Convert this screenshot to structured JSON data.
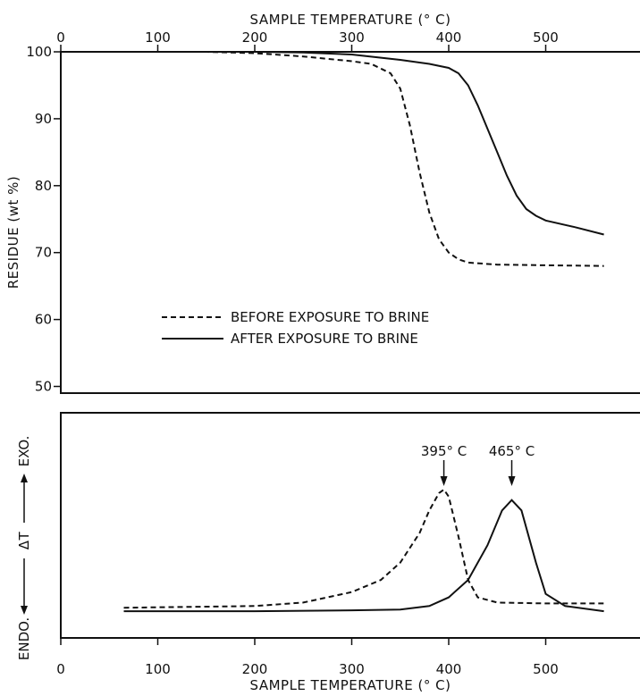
{
  "chart_data": [
    {
      "type": "line",
      "panel": "tga",
      "xlabel": "SAMPLE TEMPERATURE (° C)",
      "ylabel": "RESIDUE (wt %)",
      "xlim": [
        0,
        560
      ],
      "ylim": [
        49,
        100
      ],
      "x_ticks": [
        0,
        100,
        200,
        300,
        400,
        500
      ],
      "y_ticks": [
        50,
        60,
        70,
        80,
        90,
        100
      ],
      "legend": {
        "position": "middle-left",
        "entries": [
          {
            "label": "BEFORE EXPOSURE TO BRINE",
            "style": "dashed"
          },
          {
            "label": "AFTER EXPOSURE TO BRINE",
            "style": "solid"
          }
        ]
      },
      "series": [
        {
          "name": "BEFORE EXPOSURE TO BRINE",
          "style": "dashed",
          "x": [
            0,
            100,
            150,
            200,
            250,
            300,
            320,
            340,
            350,
            360,
            370,
            380,
            390,
            400,
            410,
            420,
            450,
            500,
            560
          ],
          "y": [
            100,
            100,
            100,
            99.8,
            99.3,
            98.6,
            98.2,
            96.8,
            94.5,
            89,
            82,
            76,
            72,
            70,
            69,
            68.5,
            68.2,
            68.1,
            68
          ]
        },
        {
          "name": "AFTER EXPOSURE TO BRINE",
          "style": "solid",
          "x": [
            0,
            100,
            200,
            250,
            300,
            350,
            380,
            400,
            410,
            420,
            430,
            440,
            450,
            460,
            470,
            480,
            490,
            500,
            530,
            560
          ],
          "y": [
            100,
            100,
            100,
            99.9,
            99.6,
            98.8,
            98.2,
            97.6,
            96.8,
            95,
            92,
            88.5,
            85,
            81.5,
            78.5,
            76.5,
            75.5,
            74.8,
            73.8,
            72.7
          ]
        }
      ]
    },
    {
      "type": "line",
      "panel": "dta",
      "xlabel": "SAMPLE TEMPERATURE (° C)",
      "ylabel": "ΔT",
      "y_direction_labels": {
        "top": "EXO.",
        "bottom": "ENDO."
      },
      "xlim": [
        0,
        560
      ],
      "ylim": [
        0,
        1
      ],
      "x_ticks": [
        0,
        100,
        200,
        300,
        400,
        500
      ],
      "annotations": [
        {
          "text": "395° C",
          "x": 395
        },
        {
          "text": "465° C",
          "x": 465
        }
      ],
      "series": [
        {
          "name": "BEFORE EXPOSURE TO BRINE",
          "style": "dashed",
          "x": [
            65,
            200,
            250,
            300,
            330,
            350,
            370,
            380,
            390,
            395,
            400,
            410,
            420,
            430,
            450,
            500,
            560
          ],
          "y": [
            0.04,
            0.05,
            0.07,
            0.13,
            0.2,
            0.3,
            0.47,
            0.6,
            0.7,
            0.72,
            0.68,
            0.45,
            0.2,
            0.1,
            0.07,
            0.065,
            0.065
          ]
        },
        {
          "name": "AFTER EXPOSURE TO BRINE",
          "style": "solid",
          "x": [
            65,
            200,
            300,
            350,
            380,
            400,
            420,
            440,
            455,
            465,
            475,
            490,
            500,
            520,
            560
          ],
          "y": [
            0.02,
            0.02,
            0.025,
            0.03,
            0.05,
            0.1,
            0.2,
            0.4,
            0.6,
            0.66,
            0.6,
            0.3,
            0.12,
            0.05,
            0.02
          ]
        }
      ]
    }
  ]
}
